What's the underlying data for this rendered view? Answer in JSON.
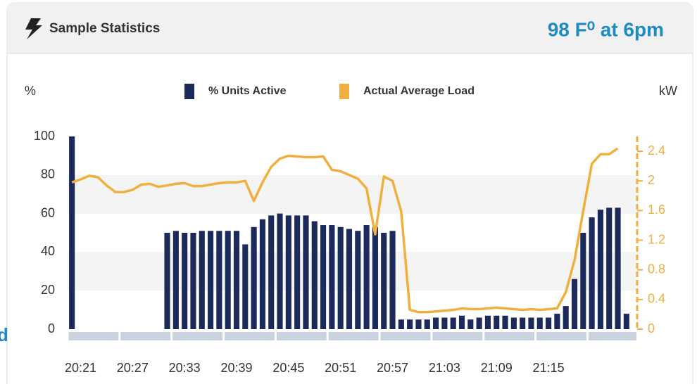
{
  "panel_title": "Sample Statistics",
  "note": "98 F⁰ at 6pm",
  "edge_text": "d",
  "chart_data": {
    "type": "bar",
    "ylabel": "%",
    "y2label": "kW",
    "ylim": [
      0,
      100
    ],
    "yticks": [
      0,
      20,
      40,
      60,
      80,
      100
    ],
    "y2lim": [
      0,
      2.6
    ],
    "y2ticks": [
      0,
      0.4,
      0.8,
      1.2,
      1.6,
      2,
      2.4
    ],
    "grid": "bands",
    "legend": "top",
    "categories": [
      null,
      "20:21",
      null,
      null,
      null,
      null,
      null,
      "20:27",
      null,
      null,
      null,
      null,
      null,
      "20:33",
      null,
      null,
      null,
      null,
      null,
      "20:39",
      null,
      null,
      null,
      null,
      null,
      "20:45",
      null,
      null,
      null,
      null,
      null,
      "20:51",
      null,
      null,
      null,
      null,
      null,
      "20:57",
      null,
      null,
      null,
      null,
      null,
      "21:03",
      null,
      null,
      null,
      null,
      null,
      "21:09",
      null,
      null,
      null,
      null,
      null,
      "21:15",
      null,
      null,
      null,
      null,
      null,
      null,
      null,
      null,
      null
    ],
    "series": [
      {
        "name": "% Units Active",
        "color": "#1b2a5a",
        "type": "bar",
        "values": [
          100,
          null,
          null,
          null,
          null,
          null,
          null,
          null,
          null,
          null,
          null,
          50,
          51,
          50,
          50,
          51,
          51,
          51,
          51,
          51,
          44,
          53,
          57,
          59,
          60,
          59,
          59,
          59,
          56,
          54,
          54,
          53,
          52,
          51,
          54,
          53,
          50,
          51,
          5,
          5,
          5,
          5,
          6,
          6,
          6,
          7,
          5,
          6,
          7,
          7,
          7,
          6,
          6,
          6,
          6,
          6,
          8,
          12,
          26,
          50,
          58,
          62,
          63,
          63,
          8
        ]
      },
      {
        "name": "Actual Average Load",
        "color": "#f0b040",
        "type": "line",
        "axis": "y2",
        "values": [
          1.98,
          2.02,
          2.07,
          2.05,
          1.94,
          1.85,
          1.85,
          1.88,
          1.95,
          1.96,
          1.92,
          1.94,
          1.96,
          1.97,
          1.93,
          1.93,
          1.95,
          1.97,
          1.98,
          1.98,
          2.0,
          1.73,
          1.98,
          2.19,
          2.3,
          2.34,
          2.33,
          2.32,
          2.32,
          2.33,
          2.15,
          2.13,
          2.08,
          2.03,
          1.9,
          1.28,
          2.06,
          2.0,
          1.59,
          0.26,
          0.23,
          0.23,
          0.24,
          0.25,
          0.26,
          0.28,
          0.27,
          0.27,
          0.28,
          0.29,
          0.28,
          0.27,
          0.26,
          0.27,
          0.26,
          0.27,
          0.28,
          0.5,
          0.93,
          1.59,
          2.23,
          2.36,
          2.36,
          2.44,
          null
        ]
      }
    ]
  }
}
